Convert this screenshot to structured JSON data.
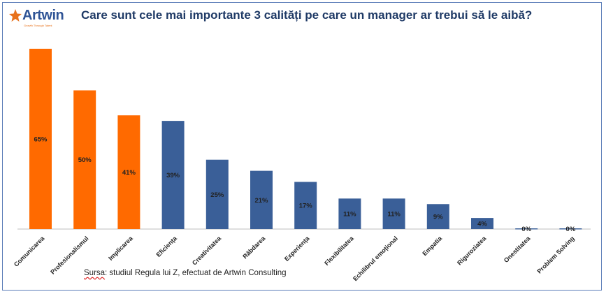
{
  "header": {
    "logo_text": "Artwin",
    "logo_tagline": "Growth Through Talent",
    "title": "Care sunt cele mai importante 3 calități pe care un manager ar trebui să le aibă?"
  },
  "chart_data": {
    "type": "bar",
    "title": "Care sunt cele mai importante 3 calități pe care un manager ar trebui să le aibă?",
    "categories": [
      "Comunicarea",
      "Profesionalismul",
      "Implicarea",
      "Eficiența",
      "Creativitatea",
      "Răbdarea",
      "Experiența",
      "Flexibilitatea",
      "Echilibrul emoțional",
      "Empatia",
      "Riguroziatea",
      "Onestitatea",
      "Problem Solving"
    ],
    "values": [
      65,
      50,
      41,
      39,
      25,
      21,
      17,
      11,
      11,
      9,
      4,
      0,
      0
    ],
    "labels": [
      "65%",
      "50%",
      "41%",
      "39%",
      "25%",
      "21%",
      "17%",
      "11%",
      "11%",
      "9%",
      "4%",
      "0%",
      "0%"
    ],
    "colors": [
      "#ff6a00",
      "#ff6a00",
      "#ff6a00",
      "#3a5f98",
      "#3a5f98",
      "#3a5f98",
      "#3a5f98",
      "#3a5f98",
      "#3a5f98",
      "#3a5f98",
      "#3a5f98",
      "#3a5f98",
      "#3a5f98"
    ],
    "ylim": [
      0,
      70
    ],
    "grid": false,
    "legend": "none"
  },
  "source": {
    "prefix": "Sursa",
    "text": ": studiul Regula lui Z, efectuat de Artwin Consulting"
  }
}
